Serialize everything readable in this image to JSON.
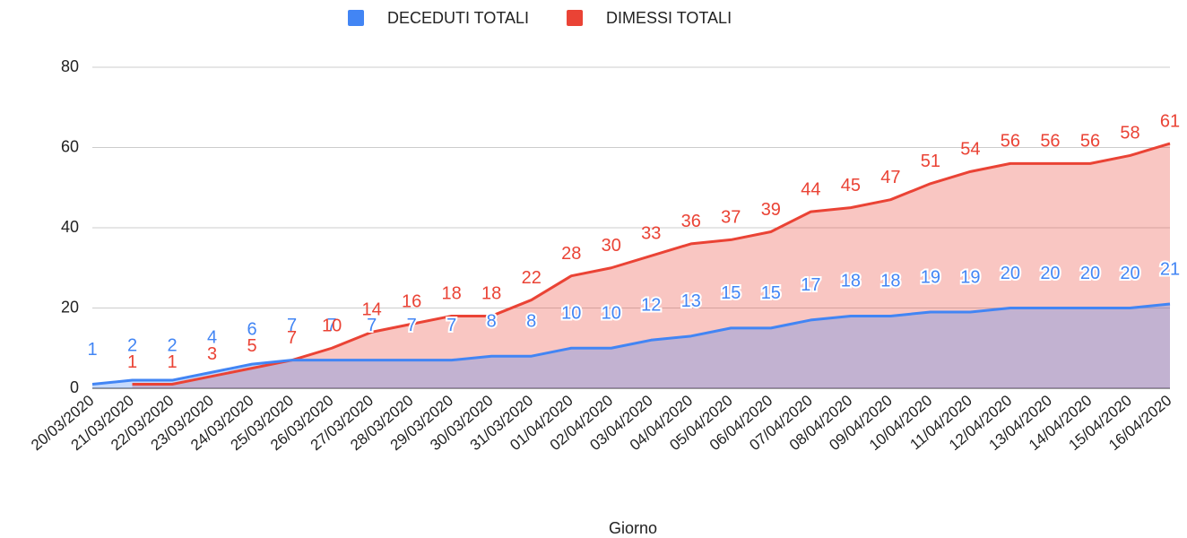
{
  "chart_data": {
    "type": "area",
    "x_label": "Giorno",
    "categories": [
      "20/03/2020",
      "21/03/2020",
      "22/03/2020",
      "23/03/2020",
      "24/03/2020",
      "25/03/2020",
      "26/03/2020",
      "27/03/2020",
      "28/03/2020",
      "29/03/2020",
      "30/03/2020",
      "31/03/2020",
      "01/04/2020",
      "02/04/2020",
      "03/04/2020",
      "04/04/2020",
      "05/04/2020",
      "06/04/2020",
      "07/04/2020",
      "08/04/2020",
      "09/04/2020",
      "10/04/2020",
      "11/04/2020",
      "12/04/2020",
      "13/04/2020",
      "14/04/2020",
      "15/04/2020",
      "16/04/2020"
    ],
    "series": [
      {
        "name": "DECEDUTI TOTALI",
        "color": "#4285f4",
        "values": [
          1,
          2,
          2,
          4,
          6,
          7,
          7,
          7,
          7,
          7,
          8,
          8,
          10,
          10,
          12,
          13,
          15,
          15,
          17,
          18,
          18,
          19,
          19,
          20,
          20,
          20,
          20,
          21
        ]
      },
      {
        "name": "DIMESSI TOTALI",
        "color": "#ea4335",
        "values": [
          null,
          1,
          1,
          3,
          5,
          7,
          10,
          14,
          16,
          18,
          18,
          22,
          28,
          30,
          33,
          36,
          37,
          39,
          44,
          45,
          47,
          51,
          54,
          56,
          56,
          56,
          58,
          61
        ]
      }
    ],
    "ylim": [
      0,
      80
    ],
    "yticks": [
      0,
      20,
      40,
      60,
      80
    ],
    "grid": true,
    "legend": "top"
  }
}
